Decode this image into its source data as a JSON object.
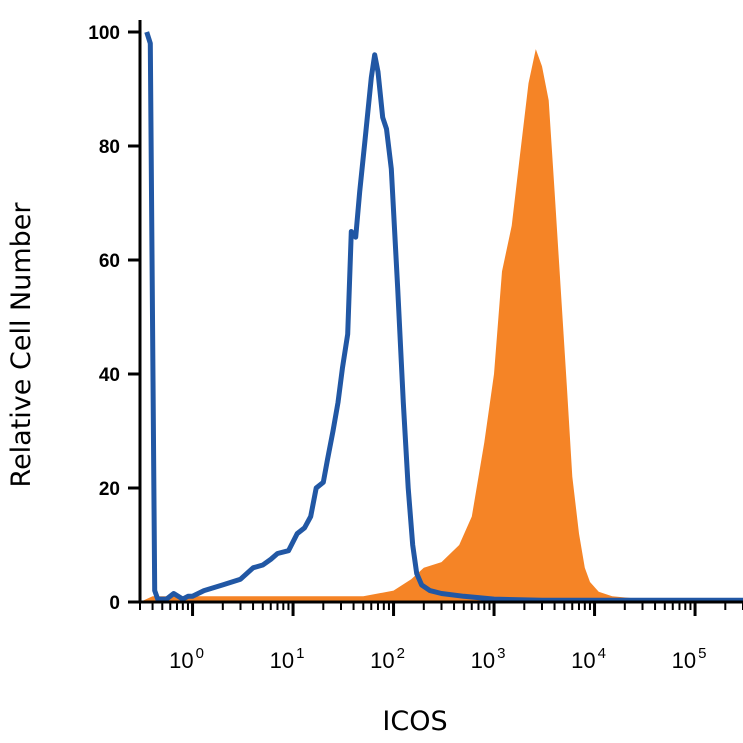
{
  "chart_data": {
    "type": "area",
    "title": "",
    "xlabel": "ICOS",
    "ylabel": "Relative Cell Number",
    "x_scale": "log",
    "xlim": [
      0.3,
      300000
    ],
    "ylim": [
      0,
      100
    ],
    "y_ticks": [
      0,
      20,
      40,
      60,
      80,
      100
    ],
    "x_ticks": [
      {
        "value": 1,
        "base": "10",
        "exp": "0"
      },
      {
        "value": 10,
        "base": "10",
        "exp": "1"
      },
      {
        "value": 100,
        "base": "10",
        "exp": "2"
      },
      {
        "value": 1000,
        "base": "10",
        "exp": "3"
      },
      {
        "value": 10000,
        "base": "10",
        "exp": "4"
      },
      {
        "value": 100000,
        "base": "10",
        "exp": "5"
      }
    ],
    "grid": false,
    "series": [
      {
        "style": "filled",
        "color": "#f58426",
        "points": [
          [
            0.3,
            0
          ],
          [
            0.4,
            1
          ],
          [
            1,
            1
          ],
          [
            10,
            1
          ],
          [
            50,
            1
          ],
          [
            100,
            2
          ],
          [
            150,
            4
          ],
          [
            200,
            6
          ],
          [
            300,
            7
          ],
          [
            450,
            10
          ],
          [
            600,
            15
          ],
          [
            800,
            28
          ],
          [
            1000,
            40
          ],
          [
            1200,
            58
          ],
          [
            1500,
            66
          ],
          [
            1800,
            78
          ],
          [
            2200,
            91
          ],
          [
            2600,
            97
          ],
          [
            3000,
            94
          ],
          [
            3500,
            88
          ],
          [
            4000,
            72
          ],
          [
            4600,
            55
          ],
          [
            5300,
            38
          ],
          [
            6000,
            22
          ],
          [
            7000,
            12
          ],
          [
            8000,
            6
          ],
          [
            9000,
            3.5
          ],
          [
            11000,
            1.8
          ],
          [
            15000,
            1
          ],
          [
            30000,
            0.5
          ],
          [
            100000,
            0.3
          ],
          [
            300000,
            0
          ]
        ]
      },
      {
        "style": "line",
        "color": "#2157a4",
        "points": [
          [
            0.35,
            100
          ],
          [
            0.38,
            98
          ],
          [
            0.42,
            2
          ],
          [
            0.45,
            0.5
          ],
          [
            0.55,
            0.5
          ],
          [
            0.65,
            1.5
          ],
          [
            0.8,
            0.5
          ],
          [
            0.9,
            1
          ],
          [
            1,
            1
          ],
          [
            1.3,
            2
          ],
          [
            2,
            3
          ],
          [
            3,
            4
          ],
          [
            4,
            6
          ],
          [
            5,
            6.5
          ],
          [
            6,
            7.5
          ],
          [
            7,
            8.5
          ],
          [
            9,
            9
          ],
          [
            11,
            12
          ],
          [
            13,
            13
          ],
          [
            15,
            15
          ],
          [
            17,
            20
          ],
          [
            20,
            21
          ],
          [
            22,
            25
          ],
          [
            25,
            30
          ],
          [
            28,
            35
          ],
          [
            31,
            41
          ],
          [
            35,
            47
          ],
          [
            38,
            65
          ],
          [
            42,
            64
          ],
          [
            46,
            72
          ],
          [
            52,
            81
          ],
          [
            60,
            92
          ],
          [
            65,
            96
          ],
          [
            70,
            93
          ],
          [
            78,
            85
          ],
          [
            85,
            83
          ],
          [
            95,
            76
          ],
          [
            110,
            55
          ],
          [
            125,
            35
          ],
          [
            140,
            20
          ],
          [
            155,
            10
          ],
          [
            170,
            5
          ],
          [
            190,
            3
          ],
          [
            230,
            2
          ],
          [
            300,
            1.5
          ],
          [
            500,
            1
          ],
          [
            1000,
            0.5
          ],
          [
            3000,
            0.3
          ],
          [
            300000,
            0.3
          ]
        ]
      }
    ]
  }
}
